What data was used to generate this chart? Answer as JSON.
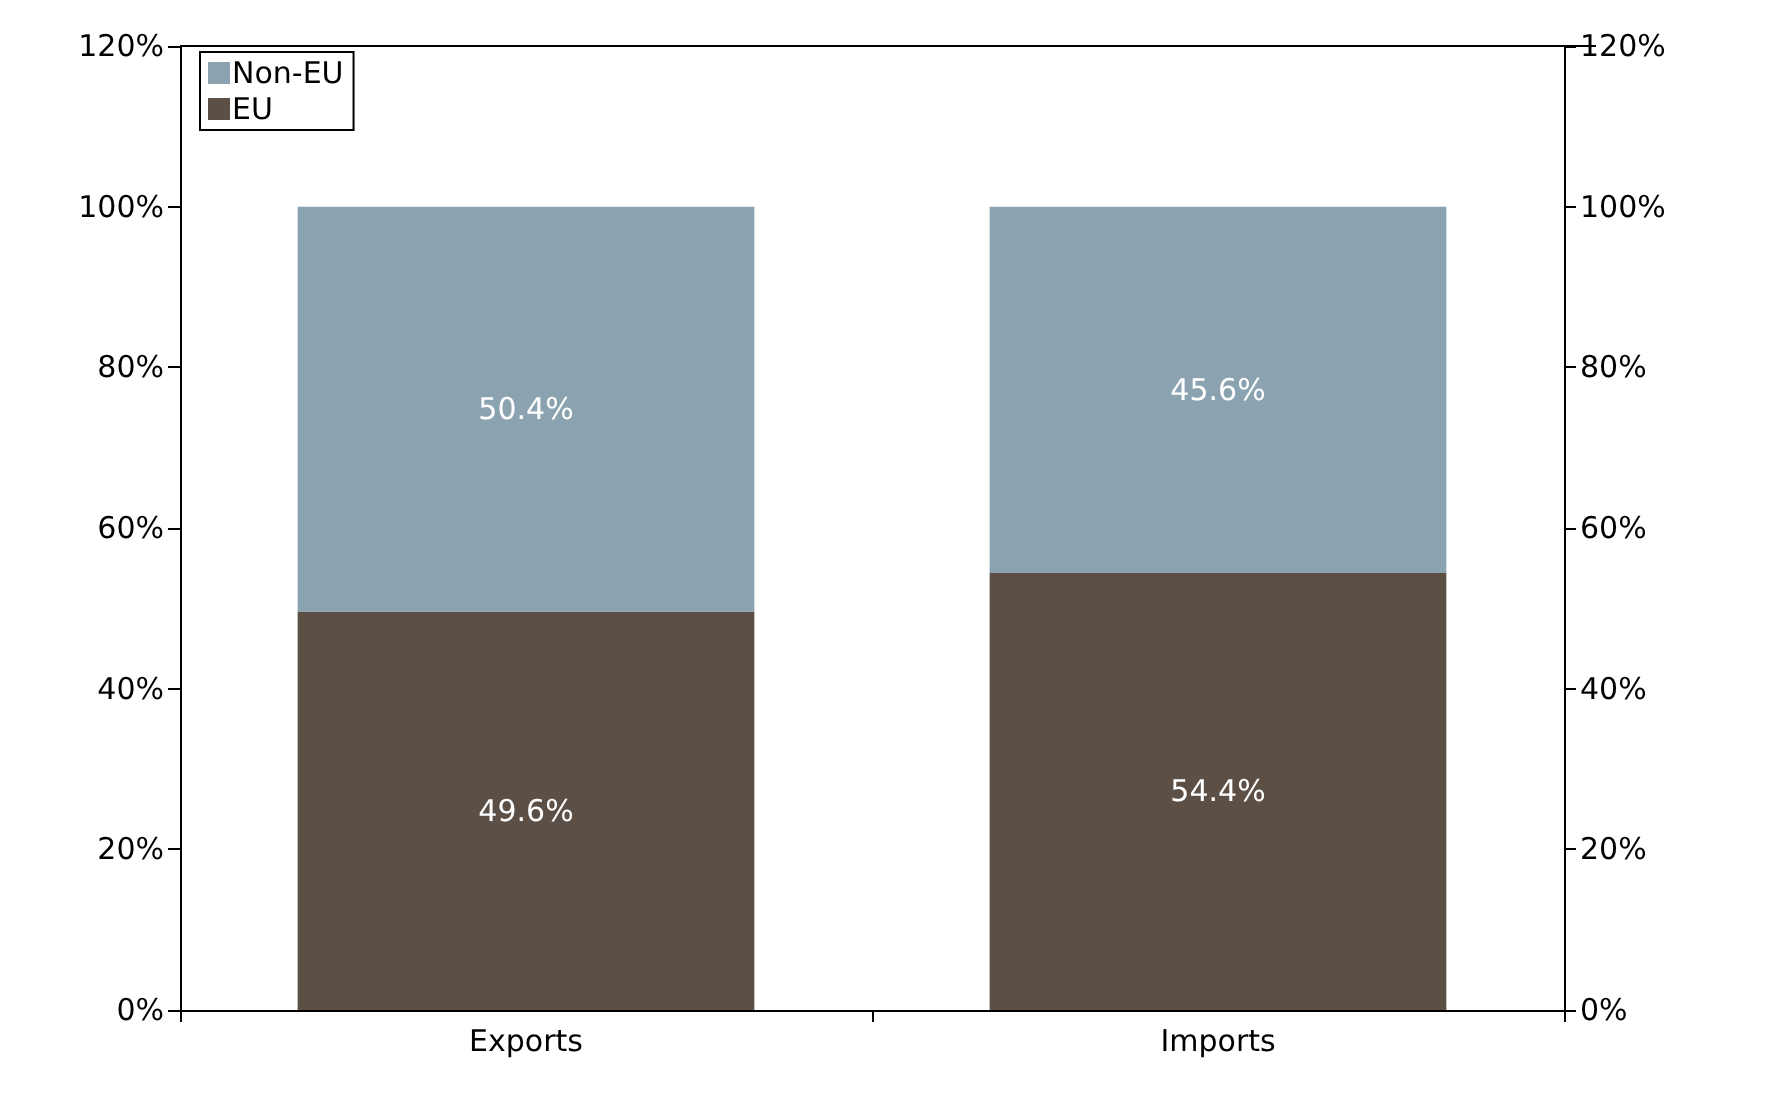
{
  "chart_data": {
    "type": "bar",
    "stacked": true,
    "categories": [
      "Exports",
      "Imports"
    ],
    "series": [
      {
        "name": "EU",
        "color": "#5c5046",
        "values": [
          49.6,
          54.4
        ],
        "value_labels": [
          "49.6%",
          "54.4%"
        ]
      },
      {
        "name": "Non-EU",
        "color": "#8ba3b1",
        "values": [
          50.4,
          45.6
        ],
        "value_labels": [
          "50.4%",
          "45.6%"
        ]
      }
    ],
    "ylim": [
      0,
      120
    ],
    "yticks": [
      {
        "value": 0,
        "label": "0%"
      },
      {
        "value": 20,
        "label": "20%"
      },
      {
        "value": 40,
        "label": "40%"
      },
      {
        "value": 60,
        "label": "60%"
      },
      {
        "value": 80,
        "label": "80%"
      },
      {
        "value": 100,
        "label": "100%"
      },
      {
        "value": 120,
        "label": "120%"
      }
    ],
    "y2lim": [
      0,
      120
    ],
    "y2ticks": [
      {
        "value": 0,
        "label": "0%"
      },
      {
        "value": 20,
        "label": "20%"
      },
      {
        "value": 40,
        "label": "40%"
      },
      {
        "value": 60,
        "label": "60%"
      },
      {
        "value": 80,
        "label": "80%"
      },
      {
        "value": 100,
        "label": "100%"
      },
      {
        "value": 120,
        "label": "120%"
      }
    ],
    "grid": false,
    "legend": "top left"
  }
}
